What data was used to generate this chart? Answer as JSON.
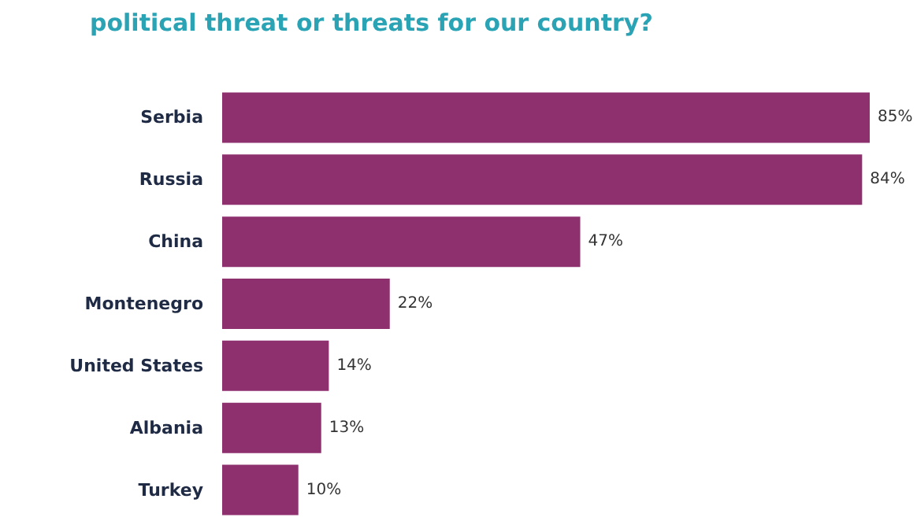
{
  "chart_data": {
    "type": "bar",
    "orientation": "horizontal",
    "title": "political threat or threats for our country?",
    "categories": [
      "Serbia",
      "Russia",
      "China",
      "Montenegro",
      "United States",
      "Albania",
      "Turkey"
    ],
    "values": [
      85,
      84,
      47,
      22,
      14,
      13,
      10
    ],
    "color": "#8e2f6e",
    "value_labels": [
      "85%",
      "84%",
      "47%",
      "22%",
      "14%",
      "13%",
      "10%"
    ]
  }
}
